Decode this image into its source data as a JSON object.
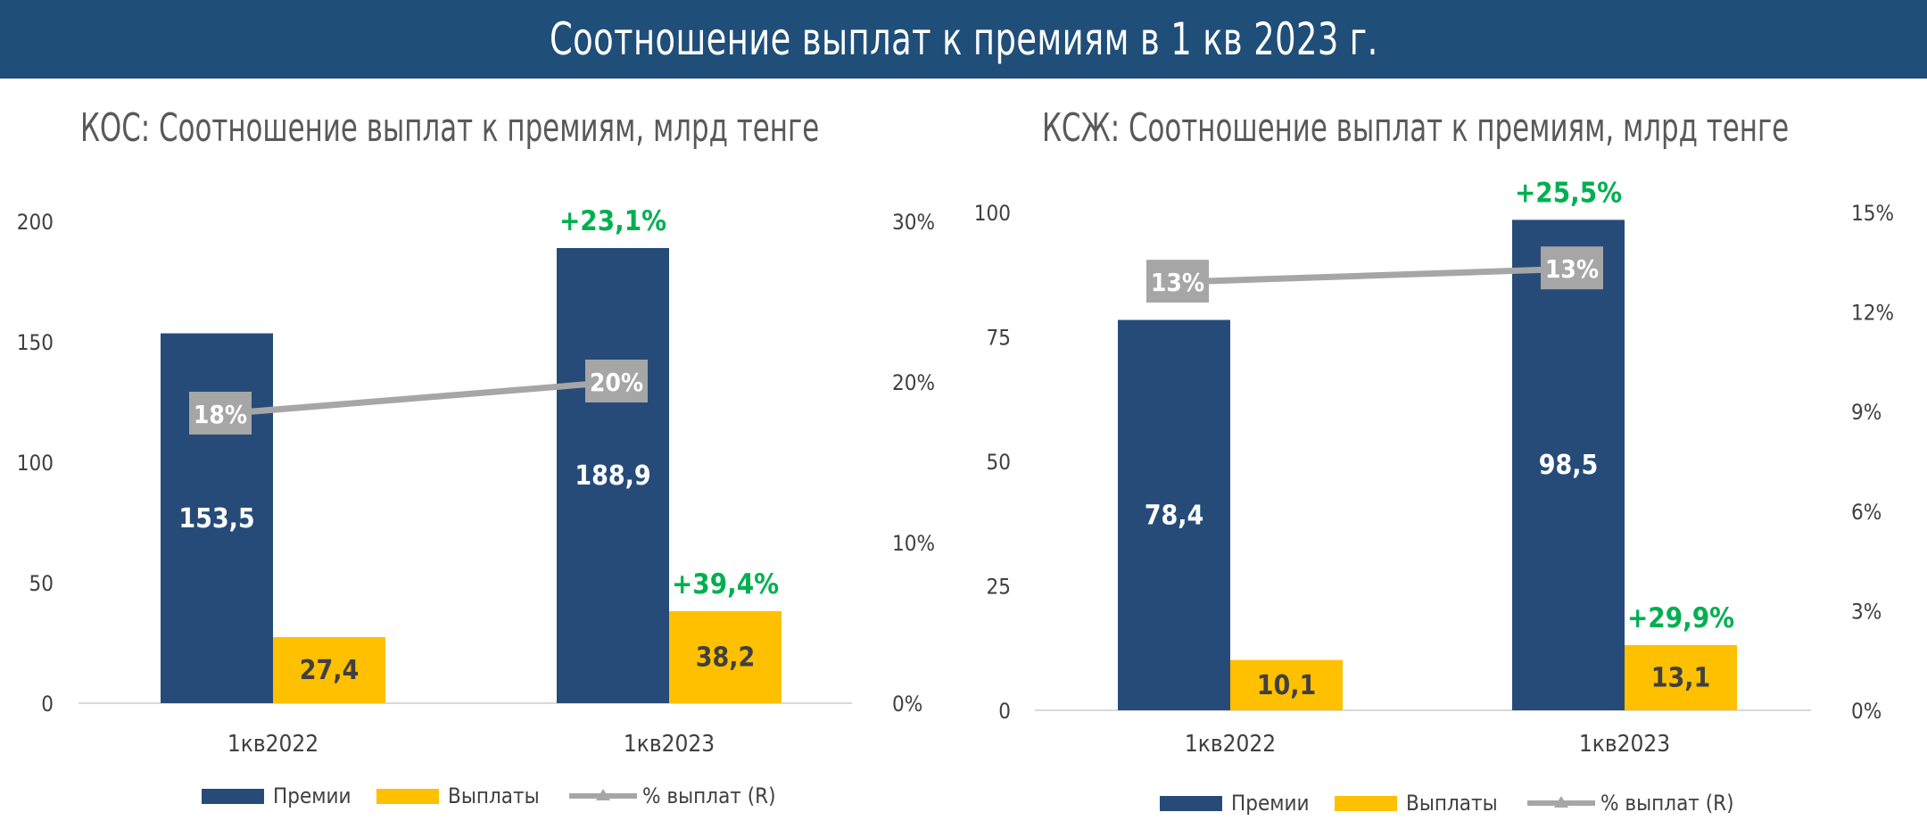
{
  "page_title": "Соотношение выплат к премиям в 1 кв 2023 г.",
  "colors": {
    "premiums": "#264b78",
    "payouts": "#ffc000",
    "ratio_line": "#a6a6a6",
    "growth": "#00b050",
    "banner": "#1f4e79"
  },
  "chart_data": [
    {
      "type": "bar",
      "title": "КОС: Соотношение выплат к премиям, млрд тенге",
      "categories": [
        "1кв2022",
        "1кв2023"
      ],
      "series": [
        {
          "name": "Премии",
          "values": [
            153.5,
            188.9
          ],
          "labels": [
            "153,5",
            "188,9"
          ]
        },
        {
          "name": "Выплаты",
          "values": [
            27.4,
            38.2
          ],
          "labels": [
            "27,4",
            "38,2"
          ]
        },
        {
          "name": "% выплат (R)",
          "axis": "right",
          "type": "line",
          "values": [
            18,
            20
          ],
          "labels": [
            "18%",
            "20%"
          ]
        }
      ],
      "growth_labels": {
        "Премии": [
          "",
          "+23,1%"
        ],
        "Выплаты": [
          "",
          "+39,4%"
        ]
      },
      "ylim": [
        0,
        200
      ],
      "yticks": [
        "0",
        "50",
        "100",
        "150",
        "200"
      ],
      "y2lim": [
        0,
        30
      ],
      "y2ticks": [
        "0%",
        "10%",
        "20%",
        "30%"
      ],
      "grid": false,
      "legend_position": "bottom"
    },
    {
      "type": "bar",
      "title": "КСЖ: Соотношение выплат к премиям, млрд тенге",
      "categories": [
        "1кв2022",
        "1кв2023"
      ],
      "series": [
        {
          "name": "Премии",
          "values": [
            78.4,
            98.5
          ],
          "labels": [
            "78,4",
            "98,5"
          ]
        },
        {
          "name": "Выплаты",
          "values": [
            10.1,
            13.1
          ],
          "labels": [
            "10,1",
            "13,1"
          ]
        },
        {
          "name": "% выплат (R)",
          "axis": "right",
          "type": "line",
          "values": [
            12.9,
            13.3
          ],
          "labels": [
            "13%",
            "13%"
          ]
        }
      ],
      "growth_labels": {
        "Премии": [
          "",
          "+25,5%"
        ],
        "Выплаты": [
          "",
          "+29,9%"
        ]
      },
      "ylim": [
        0,
        100
      ],
      "yticks": [
        "0",
        "25",
        "50",
        "75",
        "100"
      ],
      "y2lim": [
        0,
        15
      ],
      "y2ticks": [
        "0%",
        "3%",
        "6%",
        "9%",
        "12%",
        "15%"
      ],
      "grid": false,
      "legend_position": "bottom"
    }
  ]
}
